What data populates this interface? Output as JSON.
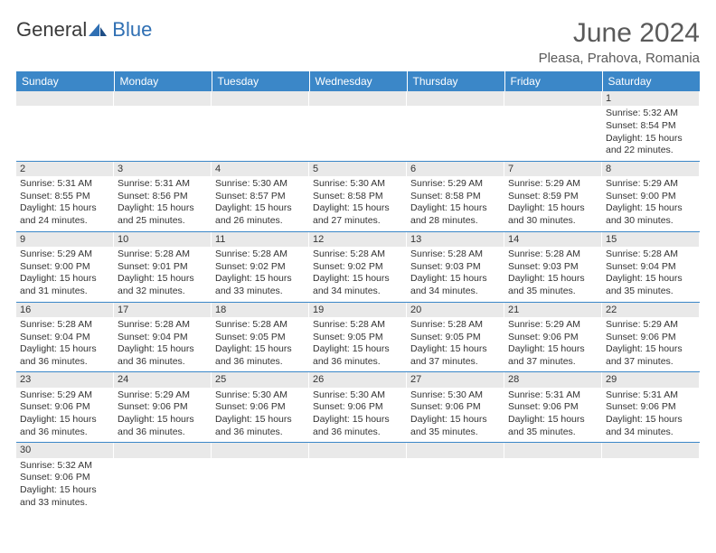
{
  "brand": {
    "part1": "General",
    "part2": "Blue"
  },
  "title": "June 2024",
  "location": "Pleasa, Prahova, Romania",
  "header_bg": "#3b87c8",
  "header_fg": "#ffffff",
  "daynum_bg": "#e9e9e9",
  "rule_color": "#3b87c8",
  "text_color": "#333333",
  "weekdays": [
    "Sunday",
    "Monday",
    "Tuesday",
    "Wednesday",
    "Thursday",
    "Friday",
    "Saturday"
  ],
  "weeks": [
    [
      {
        "n": "",
        "lines": []
      },
      {
        "n": "",
        "lines": []
      },
      {
        "n": "",
        "lines": []
      },
      {
        "n": "",
        "lines": []
      },
      {
        "n": "",
        "lines": []
      },
      {
        "n": "",
        "lines": []
      },
      {
        "n": "1",
        "lines": [
          "Sunrise: 5:32 AM",
          "Sunset: 8:54 PM",
          "Daylight: 15 hours",
          "and 22 minutes."
        ]
      }
    ],
    [
      {
        "n": "2",
        "lines": [
          "Sunrise: 5:31 AM",
          "Sunset: 8:55 PM",
          "Daylight: 15 hours",
          "and 24 minutes."
        ]
      },
      {
        "n": "3",
        "lines": [
          "Sunrise: 5:31 AM",
          "Sunset: 8:56 PM",
          "Daylight: 15 hours",
          "and 25 minutes."
        ]
      },
      {
        "n": "4",
        "lines": [
          "Sunrise: 5:30 AM",
          "Sunset: 8:57 PM",
          "Daylight: 15 hours",
          "and 26 minutes."
        ]
      },
      {
        "n": "5",
        "lines": [
          "Sunrise: 5:30 AM",
          "Sunset: 8:58 PM",
          "Daylight: 15 hours",
          "and 27 minutes."
        ]
      },
      {
        "n": "6",
        "lines": [
          "Sunrise: 5:29 AM",
          "Sunset: 8:58 PM",
          "Daylight: 15 hours",
          "and 28 minutes."
        ]
      },
      {
        "n": "7",
        "lines": [
          "Sunrise: 5:29 AM",
          "Sunset: 8:59 PM",
          "Daylight: 15 hours",
          "and 30 minutes."
        ]
      },
      {
        "n": "8",
        "lines": [
          "Sunrise: 5:29 AM",
          "Sunset: 9:00 PM",
          "Daylight: 15 hours",
          "and 30 minutes."
        ]
      }
    ],
    [
      {
        "n": "9",
        "lines": [
          "Sunrise: 5:29 AM",
          "Sunset: 9:00 PM",
          "Daylight: 15 hours",
          "and 31 minutes."
        ]
      },
      {
        "n": "10",
        "lines": [
          "Sunrise: 5:28 AM",
          "Sunset: 9:01 PM",
          "Daylight: 15 hours",
          "and 32 minutes."
        ]
      },
      {
        "n": "11",
        "lines": [
          "Sunrise: 5:28 AM",
          "Sunset: 9:02 PM",
          "Daylight: 15 hours",
          "and 33 minutes."
        ]
      },
      {
        "n": "12",
        "lines": [
          "Sunrise: 5:28 AM",
          "Sunset: 9:02 PM",
          "Daylight: 15 hours",
          "and 34 minutes."
        ]
      },
      {
        "n": "13",
        "lines": [
          "Sunrise: 5:28 AM",
          "Sunset: 9:03 PM",
          "Daylight: 15 hours",
          "and 34 minutes."
        ]
      },
      {
        "n": "14",
        "lines": [
          "Sunrise: 5:28 AM",
          "Sunset: 9:03 PM",
          "Daylight: 15 hours",
          "and 35 minutes."
        ]
      },
      {
        "n": "15",
        "lines": [
          "Sunrise: 5:28 AM",
          "Sunset: 9:04 PM",
          "Daylight: 15 hours",
          "and 35 minutes."
        ]
      }
    ],
    [
      {
        "n": "16",
        "lines": [
          "Sunrise: 5:28 AM",
          "Sunset: 9:04 PM",
          "Daylight: 15 hours",
          "and 36 minutes."
        ]
      },
      {
        "n": "17",
        "lines": [
          "Sunrise: 5:28 AM",
          "Sunset: 9:04 PM",
          "Daylight: 15 hours",
          "and 36 minutes."
        ]
      },
      {
        "n": "18",
        "lines": [
          "Sunrise: 5:28 AM",
          "Sunset: 9:05 PM",
          "Daylight: 15 hours",
          "and 36 minutes."
        ]
      },
      {
        "n": "19",
        "lines": [
          "Sunrise: 5:28 AM",
          "Sunset: 9:05 PM",
          "Daylight: 15 hours",
          "and 36 minutes."
        ]
      },
      {
        "n": "20",
        "lines": [
          "Sunrise: 5:28 AM",
          "Sunset: 9:05 PM",
          "Daylight: 15 hours",
          "and 37 minutes."
        ]
      },
      {
        "n": "21",
        "lines": [
          "Sunrise: 5:29 AM",
          "Sunset: 9:06 PM",
          "Daylight: 15 hours",
          "and 37 minutes."
        ]
      },
      {
        "n": "22",
        "lines": [
          "Sunrise: 5:29 AM",
          "Sunset: 9:06 PM",
          "Daylight: 15 hours",
          "and 37 minutes."
        ]
      }
    ],
    [
      {
        "n": "23",
        "lines": [
          "Sunrise: 5:29 AM",
          "Sunset: 9:06 PM",
          "Daylight: 15 hours",
          "and 36 minutes."
        ]
      },
      {
        "n": "24",
        "lines": [
          "Sunrise: 5:29 AM",
          "Sunset: 9:06 PM",
          "Daylight: 15 hours",
          "and 36 minutes."
        ]
      },
      {
        "n": "25",
        "lines": [
          "Sunrise: 5:30 AM",
          "Sunset: 9:06 PM",
          "Daylight: 15 hours",
          "and 36 minutes."
        ]
      },
      {
        "n": "26",
        "lines": [
          "Sunrise: 5:30 AM",
          "Sunset: 9:06 PM",
          "Daylight: 15 hours",
          "and 36 minutes."
        ]
      },
      {
        "n": "27",
        "lines": [
          "Sunrise: 5:30 AM",
          "Sunset: 9:06 PM",
          "Daylight: 15 hours",
          "and 35 minutes."
        ]
      },
      {
        "n": "28",
        "lines": [
          "Sunrise: 5:31 AM",
          "Sunset: 9:06 PM",
          "Daylight: 15 hours",
          "and 35 minutes."
        ]
      },
      {
        "n": "29",
        "lines": [
          "Sunrise: 5:31 AM",
          "Sunset: 9:06 PM",
          "Daylight: 15 hours",
          "and 34 minutes."
        ]
      }
    ],
    [
      {
        "n": "30",
        "lines": [
          "Sunrise: 5:32 AM",
          "Sunset: 9:06 PM",
          "Daylight: 15 hours",
          "and 33 minutes."
        ]
      },
      {
        "n": "",
        "lines": []
      },
      {
        "n": "",
        "lines": []
      },
      {
        "n": "",
        "lines": []
      },
      {
        "n": "",
        "lines": []
      },
      {
        "n": "",
        "lines": []
      },
      {
        "n": "",
        "lines": []
      }
    ]
  ]
}
